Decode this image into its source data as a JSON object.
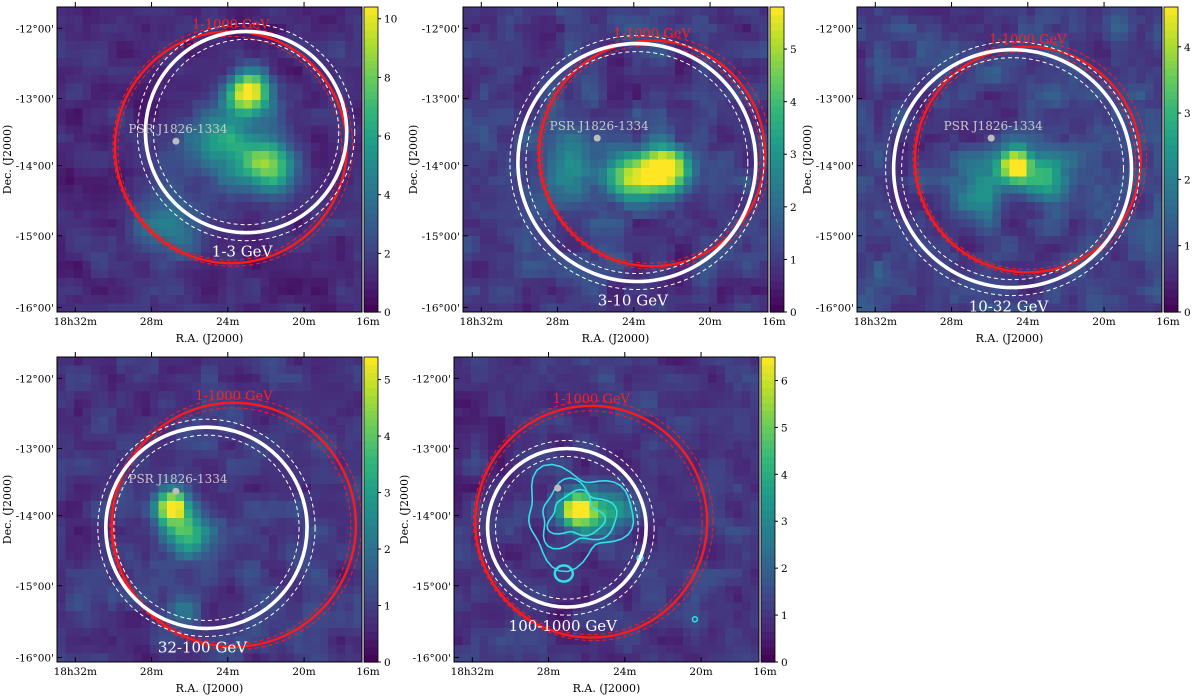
{
  "chart_data": [
    {
      "type": "heatmap",
      "band_label": "1-3 GeV",
      "ref_label": "1-1000 GeV",
      "source_label": "PSR J1826-1334",
      "xlabel": "R.A. (J2000)",
      "ylabel": "Dec. (J2000)",
      "xticks": [
        "18h32m",
        "28m",
        "24m",
        "20m",
        "16m"
      ],
      "yticks": [
        "-12°00'",
        "-13°00'",
        "-14°00'",
        "-15°00'",
        "-16°00'"
      ],
      "colorbar": {
        "min": 0,
        "max": 10.4,
        "ticks": [
          "0",
          "2",
          "4",
          "6",
          "8",
          "10"
        ]
      },
      "hotspots": [
        {
          "x": 0.63,
          "y": 0.28,
          "amp": 9.5,
          "s": 0.05
        },
        {
          "x": 0.69,
          "y": 0.52,
          "amp": 6.5,
          "s": 0.06
        },
        {
          "x": 0.55,
          "y": 0.45,
          "amp": 4.5,
          "s": 0.08
        },
        {
          "x": 0.36,
          "y": 0.72,
          "amp": 3.0,
          "s": 0.08
        }
      ],
      "noise": 2.2,
      "ring_white": {
        "x": 0.62,
        "y": 0.41,
        "r": 0.33
      },
      "ring_red": {
        "x": 0.57,
        "y": 0.46,
        "r": 0.38
      },
      "pulsar": {
        "x": 0.39,
        "y": 0.44
      },
      "seed": 11
    },
    {
      "type": "heatmap",
      "band_label": "3-10 GeV",
      "ref_label": "1-1000 GeV",
      "source_label": "PSR J1826-1334",
      "xlabel": "R.A. (J2000)",
      "ylabel": "Dec. (J2000)",
      "xticks": [
        "18h32m",
        "28m",
        "24m",
        "20m",
        "16m"
      ],
      "yticks": [
        "-12°00'",
        "-13°00'",
        "-14°00'",
        "-15°00'",
        "-16°00'"
      ],
      "colorbar": {
        "min": 0,
        "max": 5.8,
        "ticks": [
          "0",
          "1",
          "2",
          "3",
          "4",
          "5"
        ]
      },
      "hotspots": [
        {
          "x": 0.67,
          "y": 0.53,
          "amp": 5.0,
          "s": 0.05
        },
        {
          "x": 0.56,
          "y": 0.56,
          "amp": 3.8,
          "s": 0.06
        },
        {
          "x": 0.35,
          "y": 0.52,
          "amp": 2.0,
          "s": 0.07
        }
      ],
      "noise": 1.6,
      "ring_white": {
        "x": 0.57,
        "y": 0.51,
        "r": 0.39
      },
      "ring_red": {
        "x": 0.62,
        "y": 0.48,
        "r": 0.37
      },
      "pulsar": {
        "x": 0.44,
        "y": 0.43
      },
      "seed": 23
    },
    {
      "type": "heatmap",
      "band_label": "10-32 GeV",
      "ref_label": "1-1000 GeV",
      "source_label": "PSR J1826-1334",
      "xlabel": "R.A. (J2000)",
      "ylabel": "Dec. (J2000)",
      "xticks": [
        "18h32m",
        "28m",
        "24m",
        "20m",
        "16m"
      ],
      "yticks": [
        "-12°00'",
        "-13°00'",
        "-14°00'",
        "-15°00'",
        "-16°00'"
      ],
      "colorbar": {
        "min": 0,
        "max": 4.6,
        "ticks": [
          "0",
          "1",
          "2",
          "3",
          "4"
        ]
      },
      "hotspots": [
        {
          "x": 0.52,
          "y": 0.52,
          "amp": 4.2,
          "s": 0.04
        },
        {
          "x": 0.62,
          "y": 0.57,
          "amp": 2.4,
          "s": 0.05
        },
        {
          "x": 0.4,
          "y": 0.6,
          "amp": 1.5,
          "s": 0.06
        }
      ],
      "noise": 1.3,
      "ring_white": {
        "x": 0.51,
        "y": 0.53,
        "r": 0.39
      },
      "ring_red": {
        "x": 0.56,
        "y": 0.5,
        "r": 0.37
      },
      "pulsar": {
        "x": 0.44,
        "y": 0.43
      },
      "seed": 37
    },
    {
      "type": "heatmap",
      "band_label": "32-100 GeV",
      "ref_label": "1-1000 GeV",
      "source_label": "PSR J1826-1334",
      "xlabel": "R.A. (J2000)",
      "ylabel": "Dec. (J2000)",
      "xticks": [
        "18h32m",
        "28m",
        "24m",
        "20m",
        "16m"
      ],
      "yticks": [
        "-12°00'",
        "-13°00'",
        "-14°00'",
        "-15°00'",
        "-16°00'"
      ],
      "colorbar": {
        "min": 0,
        "max": 5.4,
        "ticks": [
          "0",
          "1",
          "2",
          "3",
          "4",
          "5"
        ]
      },
      "hotspots": [
        {
          "x": 0.38,
          "y": 0.49,
          "amp": 4.8,
          "s": 0.04
        },
        {
          "x": 0.43,
          "y": 0.58,
          "amp": 2.6,
          "s": 0.05
        },
        {
          "x": 0.41,
          "y": 0.82,
          "amp": 1.4,
          "s": 0.04
        }
      ],
      "noise": 1.3,
      "ring_white": {
        "x": 0.49,
        "y": 0.56,
        "r": 0.33
      },
      "ring_red": {
        "x": 0.58,
        "y": 0.55,
        "r": 0.4
      },
      "pulsar": {
        "x": 0.39,
        "y": 0.44
      },
      "seed": 53
    },
    {
      "type": "heatmap",
      "band_label": "100-1000 GeV",
      "ref_label": "1-1000 GeV",
      "source_label": "",
      "xlabel": "R.A. (J2000)",
      "ylabel": "Dec. (J2000)",
      "xticks": [
        "18h32m",
        "28m",
        "24m",
        "20m",
        "16m"
      ],
      "yticks": [
        "-12°00'",
        "-13°00'",
        "-14°00'",
        "-15°00'",
        "-16°00'"
      ],
      "colorbar": {
        "min": 0,
        "max": 6.5,
        "ticks": [
          "0",
          "1",
          "2",
          "3",
          "4",
          "5",
          "6"
        ]
      },
      "hotspots": [
        {
          "x": 0.4,
          "y": 0.5,
          "amp": 5.8,
          "s": 0.04
        },
        {
          "x": 0.47,
          "y": 0.52,
          "amp": 2.4,
          "s": 0.05
        },
        {
          "x": 0.54,
          "y": 0.5,
          "amp": 1.5,
          "s": 0.04
        }
      ],
      "noise": 1.5,
      "ring_white": {
        "x": 0.37,
        "y": 0.56,
        "r": 0.26
      },
      "ring_red": {
        "x": 0.45,
        "y": 0.54,
        "r": 0.38
      },
      "pulsar": {
        "x": 0.34,
        "y": 0.43
      },
      "contours": true,
      "seed": 71
    }
  ]
}
